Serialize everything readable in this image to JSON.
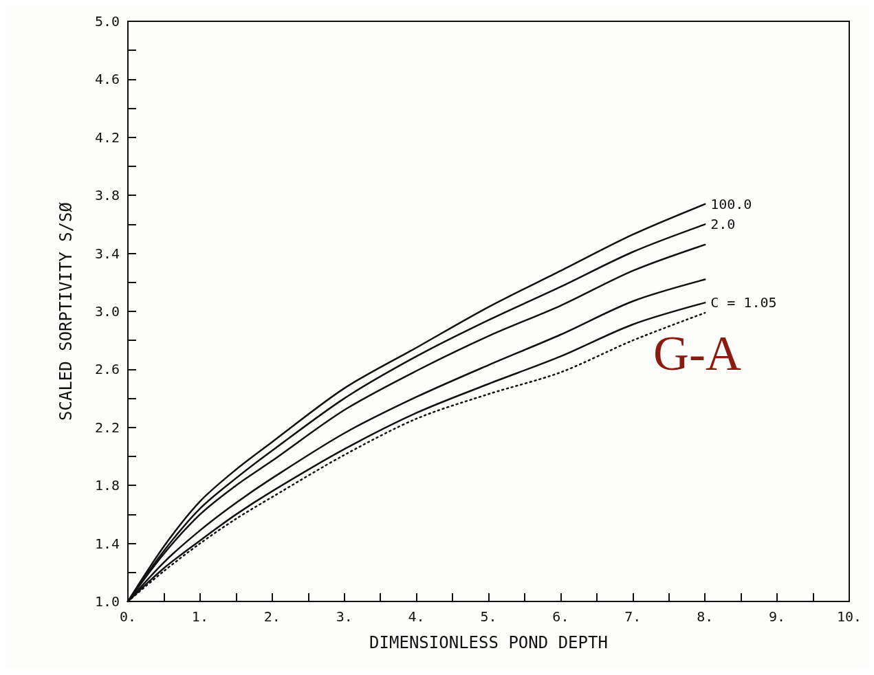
{
  "chart_data": {
    "type": "line",
    "xlabel": "DIMENSIONLESS POND DEPTH",
    "ylabel": "SCALED SORPTIVITY S/SØ",
    "x": [
      0,
      0.5,
      1,
      1.5,
      2,
      3,
      4,
      5,
      6,
      7,
      8
    ],
    "series": [
      {
        "name": "100.0",
        "color": "#111111",
        "values": [
          1.0,
          1.38,
          1.69,
          1.91,
          2.1,
          2.47,
          2.75,
          3.03,
          3.28,
          3.53,
          3.74
        ]
      },
      {
        "name": "2.0",
        "color": "#111111",
        "values": [
          1.0,
          1.35,
          1.64,
          1.85,
          2.04,
          2.4,
          2.69,
          2.94,
          3.17,
          3.41,
          3.6
        ]
      },
      {
        "color": "#111111",
        "values": [
          1.0,
          1.33,
          1.6,
          1.8,
          1.97,
          2.32,
          2.59,
          2.83,
          3.04,
          3.28,
          3.46
        ]
      },
      {
        "color": "#111111",
        "values": [
          1.0,
          1.27,
          1.49,
          1.68,
          1.85,
          2.16,
          2.41,
          2.63,
          2.84,
          3.07,
          3.22
        ]
      },
      {
        "name": "C = 1.05",
        "color": "#111111",
        "values": [
          1.0,
          1.23,
          1.42,
          1.6,
          1.76,
          2.05,
          2.3,
          2.5,
          2.69,
          2.91,
          3.06
        ]
      },
      {
        "color": "#111111",
        "line_style": "dotted",
        "values": [
          1.0,
          1.21,
          1.4,
          1.57,
          1.72,
          2.01,
          2.26,
          2.43,
          2.58,
          2.8,
          2.99
        ]
      }
    ],
    "annotations": [
      "G-A"
    ],
    "xlim": [
      0,
      10
    ],
    "xticks": [
      {
        "value": 0,
        "label": "0."
      },
      {
        "value": 0.5,
        "label": null
      },
      {
        "value": 1,
        "label": "1."
      },
      {
        "value": 1.5,
        "label": null
      },
      {
        "value": 2,
        "label": "2."
      },
      {
        "value": 2.5,
        "label": null
      },
      {
        "value": 3,
        "label": "3."
      },
      {
        "value": 3.5,
        "label": null
      },
      {
        "value": 4,
        "label": "4."
      },
      {
        "value": 4.5,
        "label": null
      },
      {
        "value": 5,
        "label": "5."
      },
      {
        "value": 5.5,
        "label": null
      },
      {
        "value": 6,
        "label": "6."
      },
      {
        "value": 6.5,
        "label": null
      },
      {
        "value": 7,
        "label": "7."
      },
      {
        "value": 7.5,
        "label": null
      },
      {
        "value": 8,
        "label": "8."
      },
      {
        "value": 8.5,
        "label": null
      },
      {
        "value": 9,
        "label": "9."
      },
      {
        "value": 9.5,
        "label": null
      },
      {
        "value": 10,
        "label": "10."
      }
    ],
    "ylim": [
      1,
      5
    ],
    "yticks": [
      {
        "value": 1,
        "label": "1.0"
      },
      {
        "value": 1.2,
        "label": null
      },
      {
        "value": 1.4,
        "label": "1.4"
      },
      {
        "value": 1.6,
        "label": null
      },
      {
        "value": 1.8,
        "label": "1.8"
      },
      {
        "value": 2,
        "label": null
      },
      {
        "value": 2.2,
        "label": "2.2"
      },
      {
        "value": 2.4,
        "label": null
      },
      {
        "value": 2.6,
        "label": "2.6"
      },
      {
        "value": 2.8,
        "label": null
      },
      {
        "value": 3,
        "label": "3.0"
      },
      {
        "value": 3.2,
        "label": null
      },
      {
        "value": 3.4,
        "label": "3.4"
      },
      {
        "value": 3.6,
        "label": null
      },
      {
        "value": 3.8,
        "label": "3.8"
      },
      {
        "value": 4,
        "label": null
      },
      {
        "value": 4.2,
        "label": "4.2"
      },
      {
        "value": 4.4,
        "label": null
      },
      {
        "value": 4.6,
        "label": "4.6"
      },
      {
        "value": 4.8,
        "label": null
      },
      {
        "value": 5,
        "label": "5.0"
      }
    ],
    "grid": false,
    "legend": false,
    "marker": "none",
    "line_style": "solid"
  }
}
